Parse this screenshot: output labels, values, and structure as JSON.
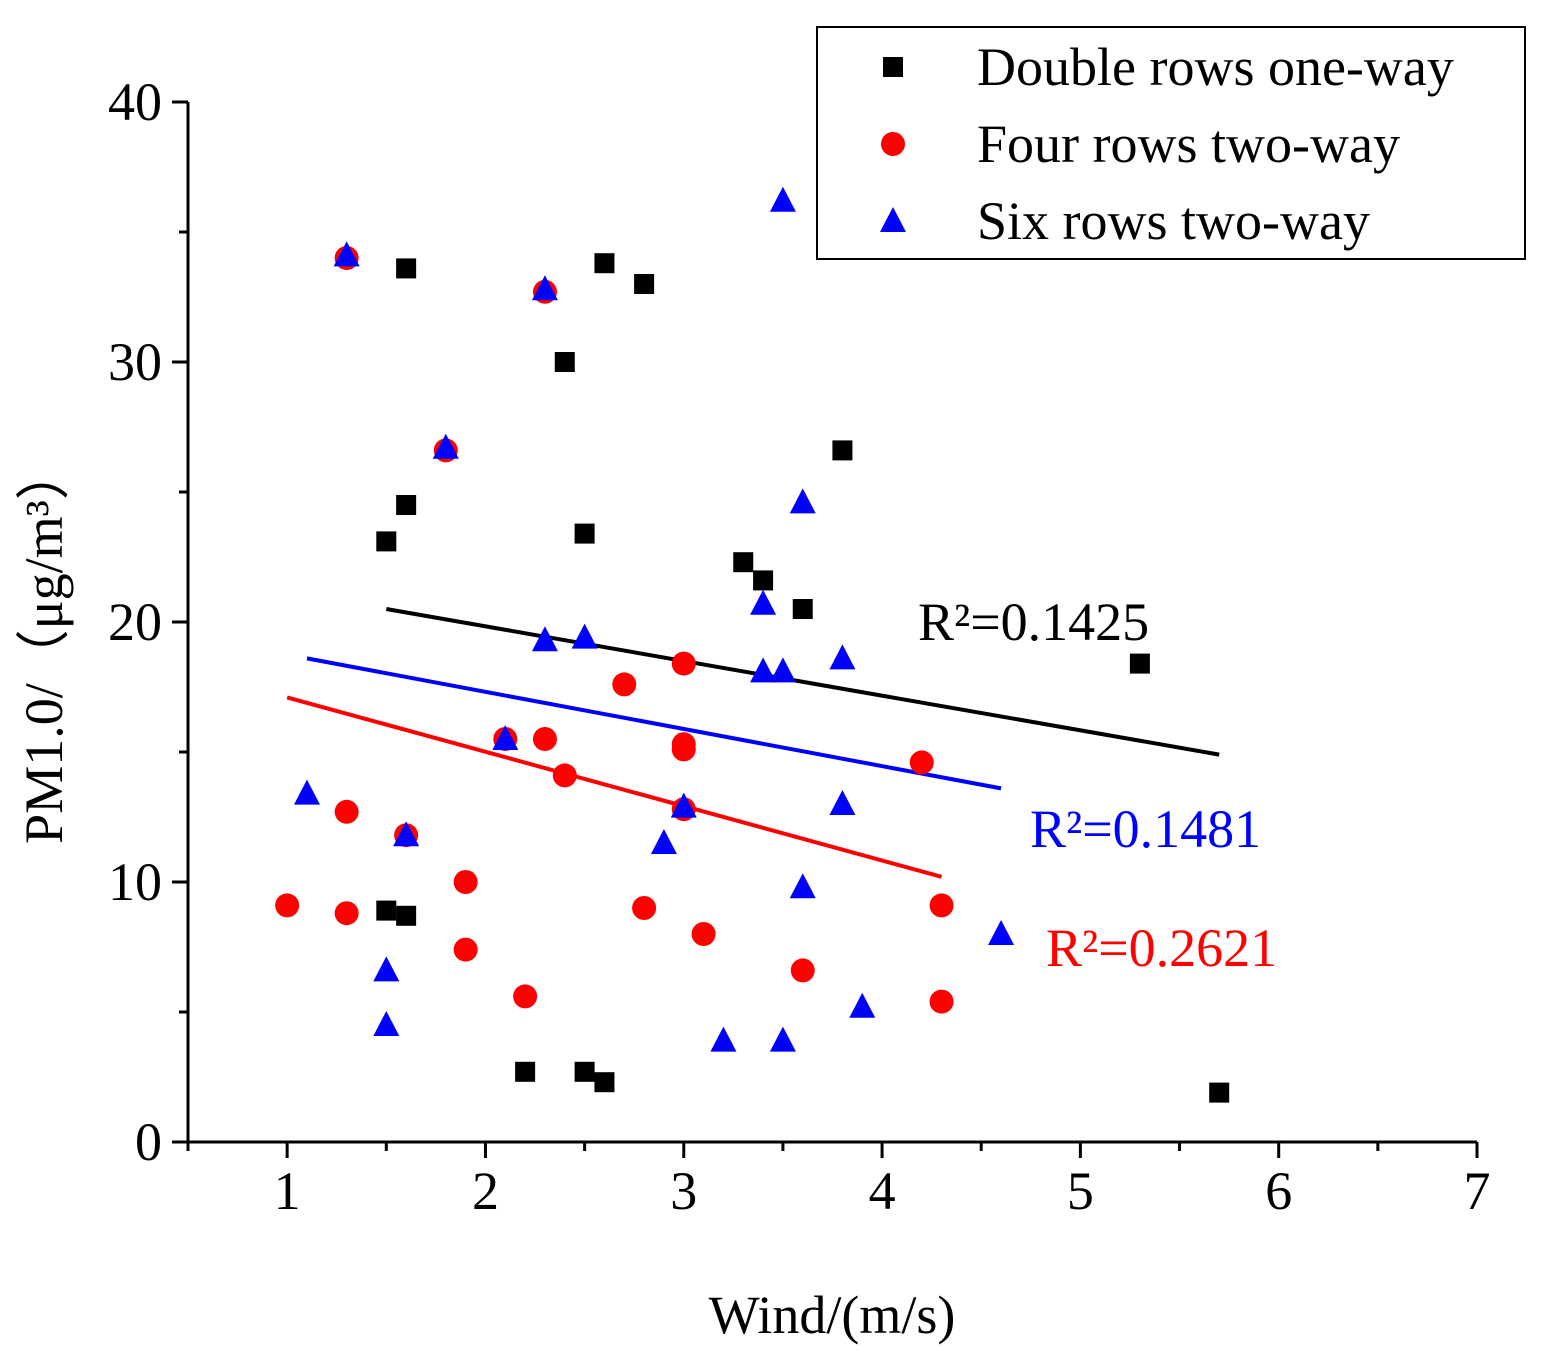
{
  "chart_data": {
    "type": "scatter",
    "xlabel": "Wind/(m/s)",
    "ylabel": "PM1.0/（μg/m³）",
    "xlim": [
      0.5,
      7
    ],
    "ylim": [
      0,
      40
    ],
    "x_ticks": [
      1,
      2,
      3,
      4,
      5,
      6,
      7
    ],
    "y_ticks": [
      0,
      10,
      20,
      30,
      40
    ],
    "legend_position": "top-right",
    "series": [
      {
        "name": "Double rows one-way",
        "marker": "square",
        "color": "#000000",
        "points": [
          [
            1.6,
            33.6
          ],
          [
            2.6,
            33.8
          ],
          [
            2.8,
            33.0
          ],
          [
            2.4,
            30.0
          ],
          [
            3.8,
            26.6
          ],
          [
            1.6,
            24.5
          ],
          [
            1.5,
            23.1
          ],
          [
            2.5,
            23.4
          ],
          [
            3.3,
            22.3
          ],
          [
            3.4,
            21.6
          ],
          [
            3.6,
            20.5
          ],
          [
            5.3,
            18.4
          ],
          [
            1.5,
            8.9
          ],
          [
            1.6,
            8.7
          ],
          [
            2.2,
            2.7
          ],
          [
            2.5,
            2.7
          ],
          [
            2.6,
            2.3
          ],
          [
            5.7,
            1.9
          ]
        ],
        "trend": {
          "x": [
            1.5,
            5.7
          ],
          "y": [
            20.5,
            14.9
          ]
        },
        "r2_label": "R²=0.1425"
      },
      {
        "name": "Four rows two-way",
        "marker": "circle",
        "color": "#ff0000",
        "points": [
          [
            1.3,
            34.0
          ],
          [
            2.3,
            32.7
          ],
          [
            1.8,
            26.6
          ],
          [
            3.0,
            18.4
          ],
          [
            2.7,
            17.6
          ],
          [
            2.1,
            15.5
          ],
          [
            2.3,
            15.5
          ],
          [
            3.0,
            15.3
          ],
          [
            3.0,
            15.1
          ],
          [
            4.2,
            14.6
          ],
          [
            2.4,
            14.1
          ],
          [
            3.0,
            12.8
          ],
          [
            1.3,
            12.7
          ],
          [
            1.6,
            11.8
          ],
          [
            1.9,
            10.0
          ],
          [
            1.0,
            9.1
          ],
          [
            4.3,
            9.1
          ],
          [
            2.8,
            9.0
          ],
          [
            1.3,
            8.8
          ],
          [
            3.1,
            8.0
          ],
          [
            1.9,
            7.4
          ],
          [
            3.6,
            6.6
          ],
          [
            2.2,
            5.6
          ],
          [
            4.3,
            5.4
          ]
        ],
        "trend": {
          "x": [
            1.0,
            4.3
          ],
          "y": [
            17.1,
            10.2
          ]
        },
        "r2_label": "R²=0.2621"
      },
      {
        "name": "Six rows two-way",
        "marker": "triangle",
        "color": "#0000ff",
        "points": [
          [
            3.5,
            36.2
          ],
          [
            1.3,
            34.1
          ],
          [
            2.3,
            32.8
          ],
          [
            1.8,
            26.7
          ],
          [
            3.6,
            24.6
          ],
          [
            3.4,
            20.7
          ],
          [
            2.3,
            19.3
          ],
          [
            2.5,
            19.4
          ],
          [
            3.8,
            18.6
          ],
          [
            3.4,
            18.1
          ],
          [
            3.5,
            18.1
          ],
          [
            2.1,
            15.5
          ],
          [
            1.1,
            13.4
          ],
          [
            3.8,
            13.0
          ],
          [
            3.0,
            12.9
          ],
          [
            1.6,
            11.8
          ],
          [
            2.9,
            11.5
          ],
          [
            3.6,
            9.8
          ],
          [
            4.6,
            8.0
          ],
          [
            1.5,
            6.6
          ],
          [
            3.9,
            5.2
          ],
          [
            1.5,
            4.5
          ],
          [
            3.2,
            3.9
          ],
          [
            3.5,
            3.9
          ]
        ],
        "trend": {
          "x": [
            1.1,
            4.6
          ],
          "y": [
            18.6,
            13.6
          ]
        },
        "r2_label": "R²=0.1481"
      }
    ]
  }
}
